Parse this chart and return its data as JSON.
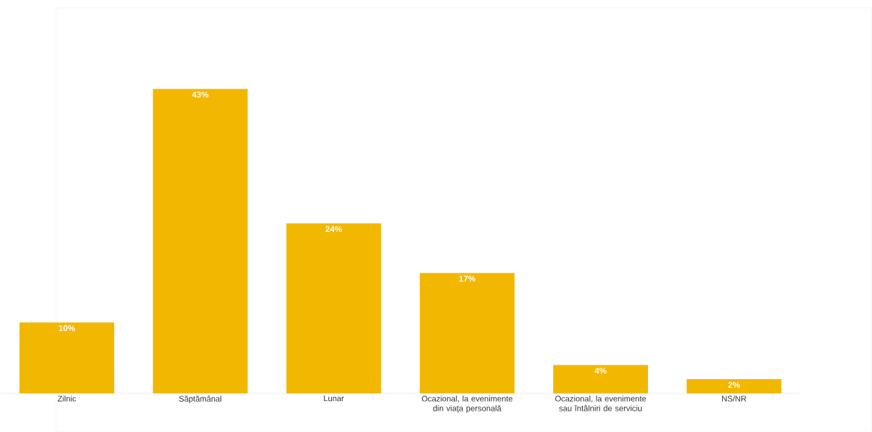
{
  "chart_data": {
    "type": "bar",
    "categories": [
      "Zilnic",
      "Săptămânal",
      "Lunar",
      "Ocazional, la evenimente din viața personală",
      "Ocazional, la evenimente sau întâlniri de serviciu",
      "NS/NR"
    ],
    "values": [
      10,
      43,
      24,
      17,
      4,
      2
    ],
    "value_labels": [
      "10%",
      "43%",
      "24%",
      "17%",
      "4%",
      "2%"
    ],
    "color": "#f2b700"
  }
}
